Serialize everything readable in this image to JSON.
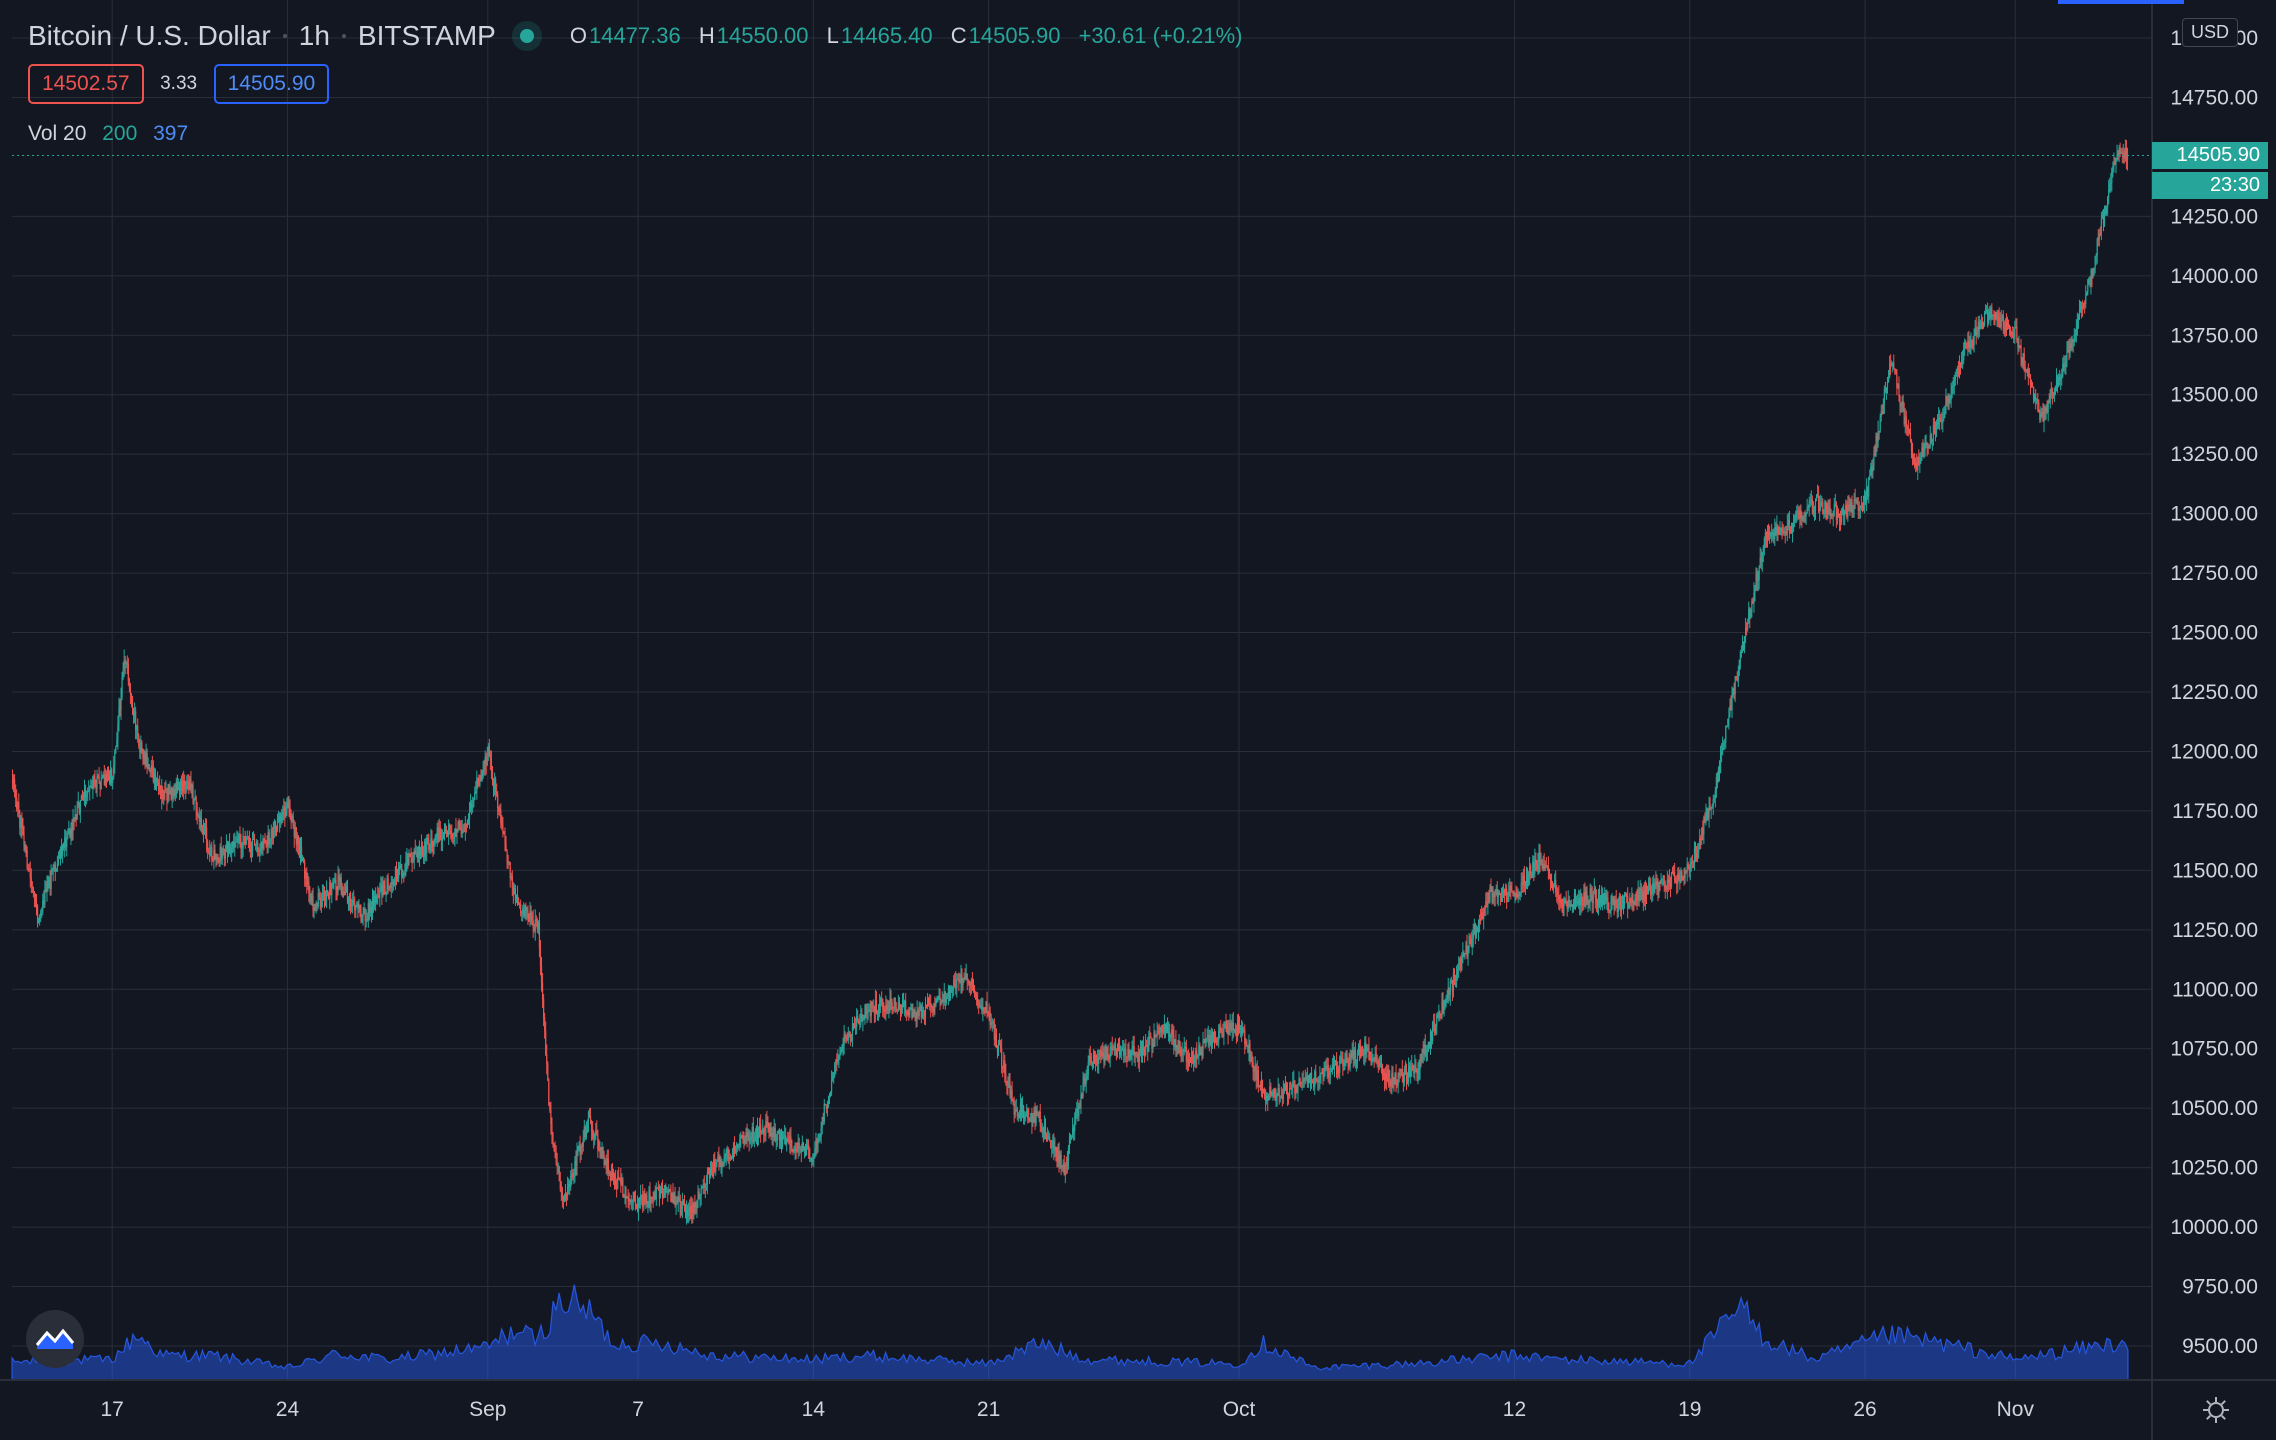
{
  "legend": {
    "symbol": "Bitcoin / U.S. Dollar",
    "interval": "1h",
    "exchange": "BITSTAMP",
    "open_key": "O",
    "open": "14477.36",
    "high_key": "H",
    "high": "14550.00",
    "low_key": "L",
    "low": "14465.40",
    "close_key": "C",
    "close": "14505.90",
    "change": "+30.61 (+0.21%)"
  },
  "quote": {
    "bid": "14502.57",
    "spread": "3.33",
    "ask": "14505.90"
  },
  "volume_legend": {
    "label": "Vol 20",
    "value_a": "200",
    "value_b": "397"
  },
  "currency_label": "USD",
  "last_price_tag": "14505.90",
  "countdown_tag": "23:30",
  "colors": {
    "background": "#131722",
    "up": "#26a69a",
    "down": "#ef5350",
    "volume": "#2962ff",
    "grid": "#2a2e39",
    "text": "#d1d4dc"
  },
  "icons": {
    "logo": "tradingview-logo-icon",
    "settings": "gear-icon",
    "live": "market-open-dot-icon"
  },
  "chart_data": {
    "type": "candlestick",
    "timeframe": "1h",
    "ylim": [
      9500,
      15000
    ],
    "y_ticks": [
      9500,
      9750,
      10000,
      10250,
      10500,
      10750,
      11000,
      11250,
      11500,
      11750,
      12000,
      12250,
      12500,
      12750,
      13000,
      13250,
      13500,
      13750,
      14000,
      14250,
      14750,
      15000
    ],
    "y_tick_labels": [
      "9500.00",
      "9750.00",
      "10000.00",
      "10250.00",
      "10500.00",
      "10750.00",
      "11000.00",
      "11250.00",
      "11500.00",
      "11750.00",
      "12000.00",
      "12250.00",
      "12500.00",
      "12750.00",
      "13000.00",
      "13250.00",
      "13500.00",
      "13750.00",
      "14000.00",
      "14250.00",
      "14750.00",
      "15000.00"
    ],
    "x_ticks": [
      {
        "date": "2020-08-17",
        "label": "17"
      },
      {
        "date": "2020-08-24",
        "label": "24"
      },
      {
        "date": "2020-09-01",
        "label": "Sep"
      },
      {
        "date": "2020-09-07",
        "label": "7"
      },
      {
        "date": "2020-09-14",
        "label": "14"
      },
      {
        "date": "2020-09-21",
        "label": "21"
      },
      {
        "date": "2020-10-01",
        "label": "Oct"
      },
      {
        "date": "2020-10-12",
        "label": "12"
      },
      {
        "date": "2020-10-19",
        "label": "19"
      },
      {
        "date": "2020-10-26",
        "label": "26"
      },
      {
        "date": "2020-11-01",
        "label": "Nov"
      }
    ],
    "x_range": [
      "2020-08-13",
      "2020-11-05"
    ],
    "last_price": 14505.9,
    "price_path": [
      {
        "date": "2020-08-13",
        "price": 11880
      },
      {
        "date": "2020-08-14",
        "price": 11300
      },
      {
        "date": "2020-08-15",
        "price": 11600
      },
      {
        "date": "2020-08-16",
        "price": 11850
      },
      {
        "date": "2020-08-17",
        "price": 11900
      },
      {
        "date": "2020-08-17T12",
        "price": 12400
      },
      {
        "date": "2020-08-18",
        "price": 12050
      },
      {
        "date": "2020-08-19",
        "price": 11800
      },
      {
        "date": "2020-08-20",
        "price": 11880
      },
      {
        "date": "2020-08-21",
        "price": 11550
      },
      {
        "date": "2020-08-22",
        "price": 11620
      },
      {
        "date": "2020-08-23",
        "price": 11600
      },
      {
        "date": "2020-08-24",
        "price": 11780
      },
      {
        "date": "2020-08-25",
        "price": 11350
      },
      {
        "date": "2020-08-26",
        "price": 11450
      },
      {
        "date": "2020-08-27",
        "price": 11300
      },
      {
        "date": "2020-08-28",
        "price": 11450
      },
      {
        "date": "2020-08-29",
        "price": 11550
      },
      {
        "date": "2020-08-30",
        "price": 11650
      },
      {
        "date": "2020-08-31",
        "price": 11680
      },
      {
        "date": "2020-09-01",
        "price": 12000
      },
      {
        "date": "2020-09-02",
        "price": 11400
      },
      {
        "date": "2020-09-03",
        "price": 11250
      },
      {
        "date": "2020-09-03T12",
        "price": 10400
      },
      {
        "date": "2020-09-04",
        "price": 10100
      },
      {
        "date": "2020-09-05",
        "price": 10450
      },
      {
        "date": "2020-09-06",
        "price": 10200
      },
      {
        "date": "2020-09-07",
        "price": 10100
      },
      {
        "date": "2020-09-08",
        "price": 10150
      },
      {
        "date": "2020-09-09",
        "price": 10050
      },
      {
        "date": "2020-09-10",
        "price": 10250
      },
      {
        "date": "2020-09-11",
        "price": 10350
      },
      {
        "date": "2020-09-12",
        "price": 10420
      },
      {
        "date": "2020-09-13",
        "price": 10350
      },
      {
        "date": "2020-09-14",
        "price": 10300
      },
      {
        "date": "2020-09-15",
        "price": 10750
      },
      {
        "date": "2020-09-16",
        "price": 10900
      },
      {
        "date": "2020-09-17",
        "price": 10950
      },
      {
        "date": "2020-09-18",
        "price": 10900
      },
      {
        "date": "2020-09-19",
        "price": 10950
      },
      {
        "date": "2020-09-20",
        "price": 11050
      },
      {
        "date": "2020-09-21",
        "price": 10900
      },
      {
        "date": "2020-09-22",
        "price": 10500
      },
      {
        "date": "2020-09-23",
        "price": 10450
      },
      {
        "date": "2020-09-24",
        "price": 10250
      },
      {
        "date": "2020-09-25",
        "price": 10700
      },
      {
        "date": "2020-09-26",
        "price": 10750
      },
      {
        "date": "2020-09-27",
        "price": 10720
      },
      {
        "date": "2020-09-28",
        "price": 10850
      },
      {
        "date": "2020-09-29",
        "price": 10700
      },
      {
        "date": "2020-09-30",
        "price": 10800
      },
      {
        "date": "2020-10-01",
        "price": 10850
      },
      {
        "date": "2020-10-02",
        "price": 10550
      },
      {
        "date": "2020-10-03",
        "price": 10580
      },
      {
        "date": "2020-10-04",
        "price": 10620
      },
      {
        "date": "2020-10-05",
        "price": 10680
      },
      {
        "date": "2020-10-06",
        "price": 10750
      },
      {
        "date": "2020-10-07",
        "price": 10620
      },
      {
        "date": "2020-10-08",
        "price": 10650
      },
      {
        "date": "2020-10-09",
        "price": 10900
      },
      {
        "date": "2020-10-10",
        "price": 11150
      },
      {
        "date": "2020-10-11",
        "price": 11400
      },
      {
        "date": "2020-10-12",
        "price": 11400
      },
      {
        "date": "2020-10-13",
        "price": 11550
      },
      {
        "date": "2020-10-14",
        "price": 11350
      },
      {
        "date": "2020-10-15",
        "price": 11400
      },
      {
        "date": "2020-10-16",
        "price": 11350
      },
      {
        "date": "2020-10-17",
        "price": 11400
      },
      {
        "date": "2020-10-18",
        "price": 11450
      },
      {
        "date": "2020-10-19",
        "price": 11500
      },
      {
        "date": "2020-10-20",
        "price": 11850
      },
      {
        "date": "2020-10-21",
        "price": 12400
      },
      {
        "date": "2020-10-22",
        "price": 12900
      },
      {
        "date": "2020-10-23",
        "price": 12950
      },
      {
        "date": "2020-10-24",
        "price": 13050
      },
      {
        "date": "2020-10-25",
        "price": 13000
      },
      {
        "date": "2020-10-26",
        "price": 13050
      },
      {
        "date": "2020-10-27",
        "price": 13650
      },
      {
        "date": "2020-10-28",
        "price": 13200
      },
      {
        "date": "2020-10-29",
        "price": 13400
      },
      {
        "date": "2020-10-30",
        "price": 13700
      },
      {
        "date": "2020-10-31",
        "price": 13850
      },
      {
        "date": "2020-11-01",
        "price": 13750
      },
      {
        "date": "2020-11-02",
        "price": 13400
      },
      {
        "date": "2020-11-03",
        "price": 13650
      },
      {
        "date": "2020-11-04",
        "price": 14000
      },
      {
        "date": "2020-11-05",
        "price": 14506
      }
    ],
    "volume_path": [
      {
        "date": "2020-08-13",
        "volume": 0.22
      },
      {
        "date": "2020-08-17",
        "volume": 0.25
      },
      {
        "date": "2020-08-18",
        "volume": 0.55
      },
      {
        "date": "2020-08-19",
        "volume": 0.3
      },
      {
        "date": "2020-08-21",
        "volume": 0.3
      },
      {
        "date": "2020-08-24",
        "volume": 0.15
      },
      {
        "date": "2020-08-26",
        "volume": 0.32
      },
      {
        "date": "2020-08-28",
        "volume": 0.25
      },
      {
        "date": "2020-09-01",
        "volume": 0.4
      },
      {
        "date": "2020-09-02",
        "volume": 0.6
      },
      {
        "date": "2020-09-03",
        "volume": 0.5
      },
      {
        "date": "2020-09-04",
        "volume": 1.0
      },
      {
        "date": "2020-09-05",
        "volume": 0.85
      },
      {
        "date": "2020-09-06",
        "volume": 0.45
      },
      {
        "date": "2020-09-08",
        "volume": 0.45
      },
      {
        "date": "2020-09-10",
        "volume": 0.3
      },
      {
        "date": "2020-09-14",
        "volume": 0.25
      },
      {
        "date": "2020-09-16",
        "volume": 0.3
      },
      {
        "date": "2020-09-21",
        "volume": 0.2
      },
      {
        "date": "2020-09-23",
        "volume": 0.45
      },
      {
        "date": "2020-09-25",
        "volume": 0.25
      },
      {
        "date": "2020-10-01",
        "volume": 0.2
      },
      {
        "date": "2020-10-02",
        "volume": 0.45
      },
      {
        "date": "2020-10-04",
        "volume": 0.15
      },
      {
        "date": "2020-10-08",
        "volume": 0.2
      },
      {
        "date": "2020-10-12",
        "volume": 0.3
      },
      {
        "date": "2020-10-14",
        "volume": 0.25
      },
      {
        "date": "2020-10-19",
        "volume": 0.2
      },
      {
        "date": "2020-10-21",
        "volume": 0.9
      },
      {
        "date": "2020-10-22",
        "volume": 0.5
      },
      {
        "date": "2020-10-24",
        "volume": 0.25
      },
      {
        "date": "2020-10-27",
        "volume": 0.55
      },
      {
        "date": "2020-10-29",
        "volume": 0.45
      },
      {
        "date": "2020-11-01",
        "volume": 0.25
      },
      {
        "date": "2020-11-03",
        "volume": 0.35
      },
      {
        "date": "2020-11-05",
        "volume": 0.45
      }
    ]
  }
}
